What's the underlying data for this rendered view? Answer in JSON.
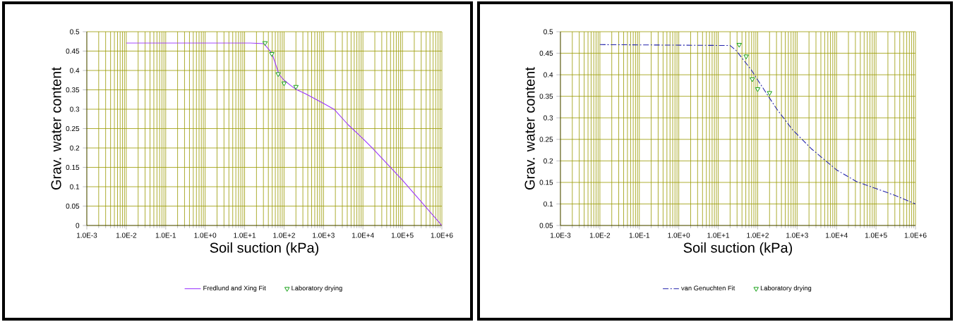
{
  "chart_data": [
    {
      "type": "line",
      "xlabel": "Soil suction (kPa)",
      "ylabel": "Grav. water content",
      "log": "x",
      "grid": true,
      "legend": "bottom",
      "xlim": [
        0.001,
        1000000
      ],
      "xticks": [
        {
          "value": 0.001,
          "label": "1.0E-3"
        },
        {
          "value": 0.01,
          "label": "1.0E-2"
        },
        {
          "value": 0.1,
          "label": "1.0E-1"
        },
        {
          "value": 1,
          "label": "1.0E+0"
        },
        {
          "value": 10,
          "label": "1.0E+1"
        },
        {
          "value": 100,
          "label": "1.0E+2"
        },
        {
          "value": 1000,
          "label": "1.0E+3"
        },
        {
          "value": 10000,
          "label": "1.0E+4"
        },
        {
          "value": 100000,
          "label": "1.0E+5"
        },
        {
          "value": 1000000,
          "label": "1.0E+6"
        }
      ],
      "ylim": [
        0,
        0.5
      ],
      "yticks": [
        0,
        0.05,
        0.1,
        0.15,
        0.2,
        0.25,
        0.3,
        0.35,
        0.4,
        0.45,
        0.5
      ],
      "series": [
        {
          "name": "Fredlund and Xing Fit",
          "color": "#9933ff",
          "line_style": "solid",
          "x": [
            0.01,
            14,
            31,
            49,
            64,
            74,
            100,
            144,
            195,
            348,
            1000,
            1900,
            4200,
            10000,
            18000,
            100000,
            1000000
          ],
          "values": [
            0.471,
            0.471,
            0.469,
            0.445,
            0.41,
            0.39,
            0.375,
            0.362,
            0.352,
            0.34,
            0.315,
            0.299,
            0.26,
            0.224,
            0.198,
            0.117,
            0.0
          ]
        },
        {
          "name": "Laboratory drying",
          "type": "scatter",
          "marker": "triangle",
          "color": "#009900",
          "x": [
            33,
            49,
            71,
            100,
            200
          ],
          "values": [
            0.471,
            0.443,
            0.391,
            0.367,
            0.358
          ]
        }
      ]
    },
    {
      "type": "line",
      "xlabel": "Soil suction (kPa)",
      "ylabel": "Grav. water content",
      "log": "x",
      "grid": true,
      "legend": "bottom",
      "xlim": [
        0.001,
        1000000
      ],
      "xticks": [
        {
          "value": 0.001,
          "label": "1.0E-3"
        },
        {
          "value": 0.01,
          "label": "1.0E-2"
        },
        {
          "value": 0.1,
          "label": "1.0E-1"
        },
        {
          "value": 1,
          "label": "1.0E+0"
        },
        {
          "value": 10,
          "label": "1.0E+1"
        },
        {
          "value": 100,
          "label": "1.0E+2"
        },
        {
          "value": 1000,
          "label": "1.0E+3"
        },
        {
          "value": 10000,
          "label": "1.0E+4"
        },
        {
          "value": 100000,
          "label": "1.0E+5"
        },
        {
          "value": 1000000,
          "label": "1.0E+6"
        }
      ],
      "ylim": [
        0.05,
        0.5
      ],
      "yticks": [
        0.05,
        0.1,
        0.15,
        0.2,
        0.25,
        0.3,
        0.35,
        0.4,
        0.45,
        0.5
      ],
      "series": [
        {
          "name": "van Genuchten Fit",
          "color": "#2222aa",
          "line_style": "dashed",
          "x": [
            0.01,
            20,
            28,
            68,
            105,
            296,
            770,
            2300,
            10000,
            32000,
            105000,
            300000,
            1000000
          ],
          "values": [
            0.47,
            0.468,
            0.457,
            0.412,
            0.385,
            0.322,
            0.272,
            0.228,
            0.179,
            0.152,
            0.135,
            0.12,
            0.1
          ]
        },
        {
          "name": "Laboratory drying",
          "type": "scatter",
          "marker": "triangle",
          "color": "#009900",
          "x": [
            34,
            51,
            73,
            100,
            200
          ],
          "values": [
            0.47,
            0.443,
            0.39,
            0.367,
            0.358
          ]
        }
      ]
    }
  ]
}
